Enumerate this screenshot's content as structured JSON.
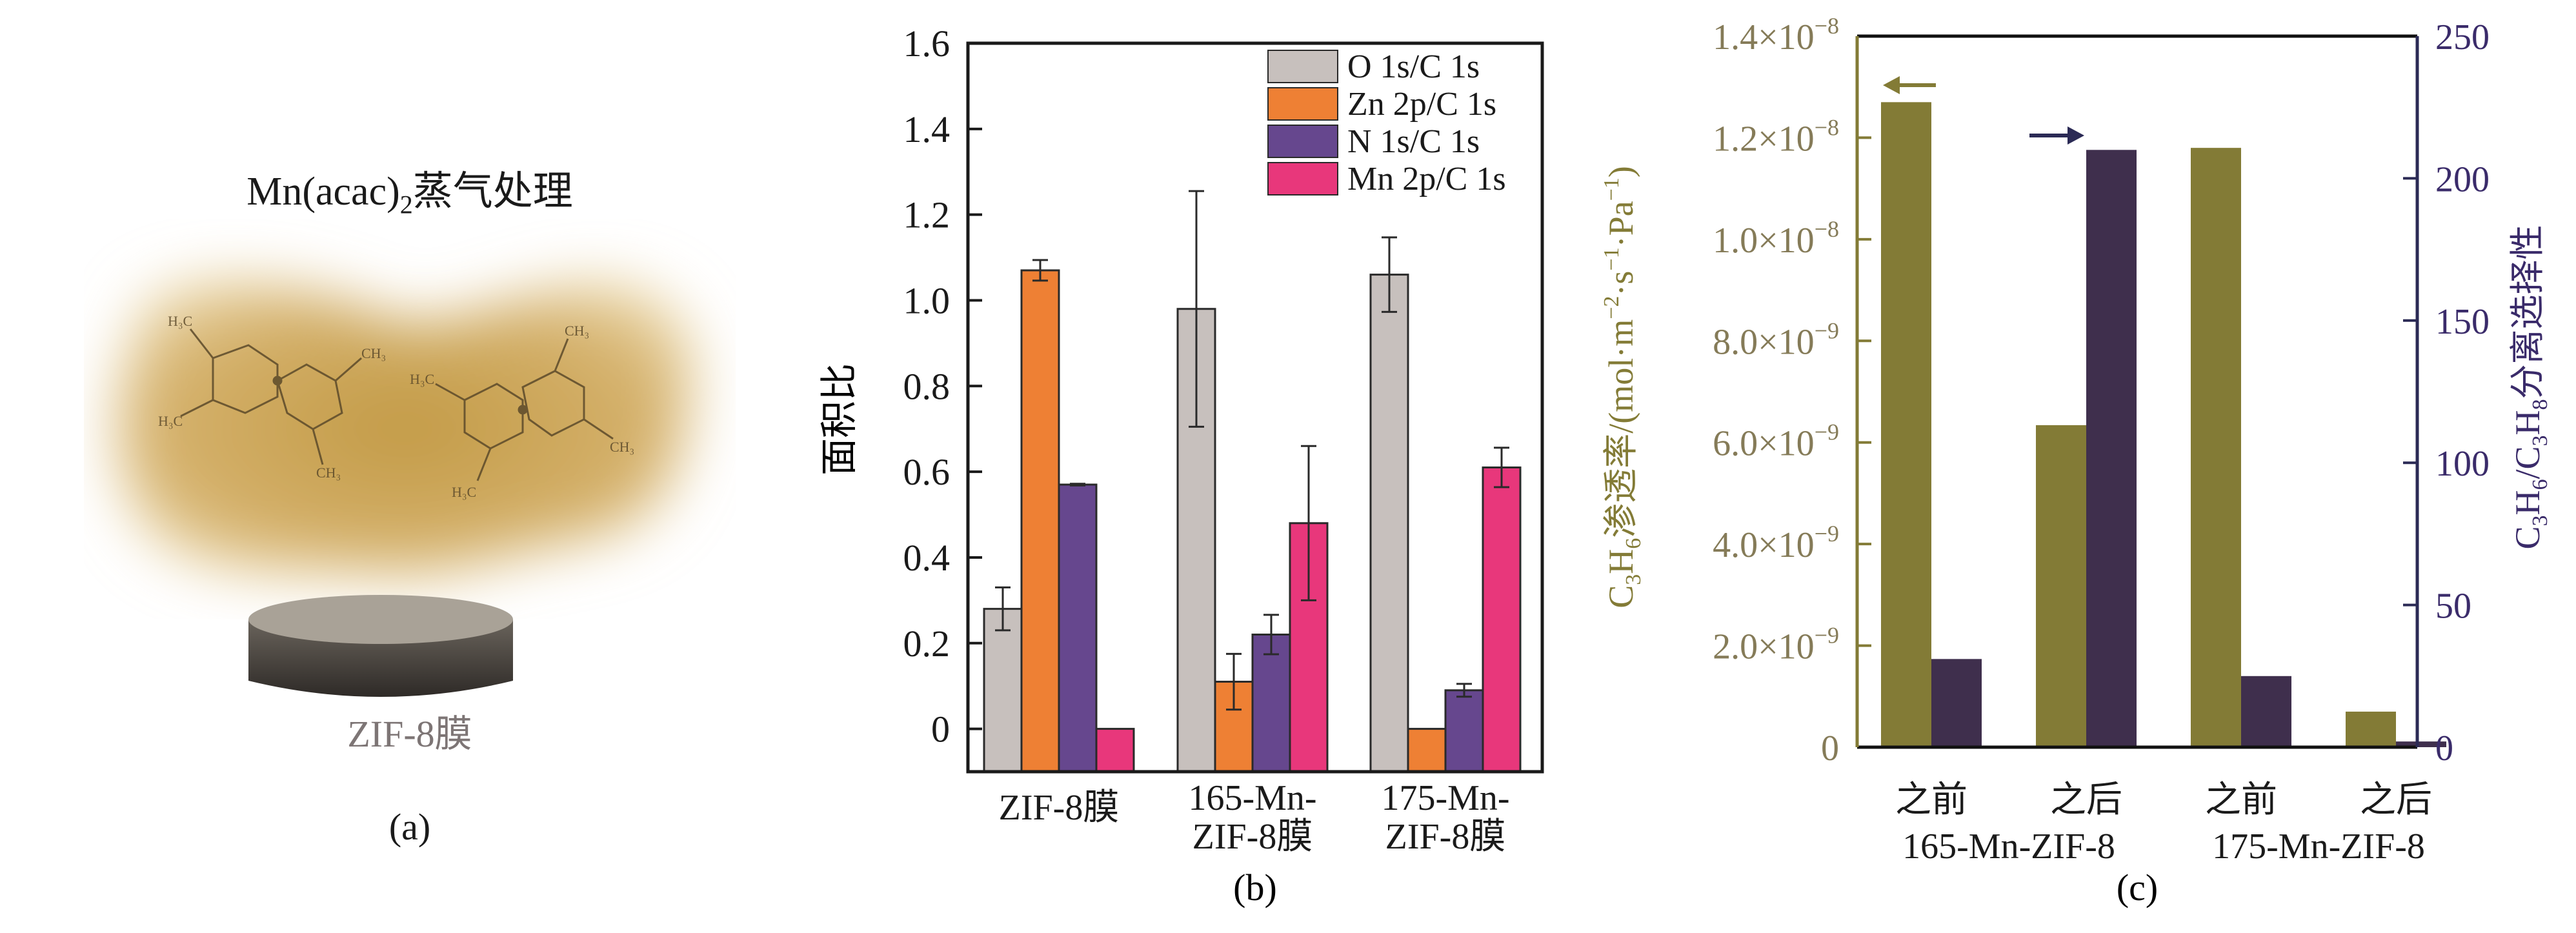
{
  "panel_a": {
    "title_main": "Mn(acac)",
    "title_sub": "2",
    "title_rest": "蒸气处理",
    "membrane_label": "ZIF-8膜",
    "panel_label": "(a)",
    "colors": {
      "vapor": "#c9a24a",
      "membrane_top": "#a59f95",
      "membrane_side": "#3c3834"
    }
  },
  "chart_data": [
    {
      "type": "bar",
      "panel_label": "(b)",
      "title": "",
      "ylabel": "面积比",
      "xlabel": "",
      "ylim": [
        -0.1,
        1.6
      ],
      "yticks": [
        0,
        0.2,
        0.4,
        0.6,
        0.8,
        1.0,
        1.2,
        1.4,
        1.6
      ],
      "ytick_labels": [
        "0",
        "0.2",
        "0.4",
        "0.6",
        "0.8",
        "1.0",
        "1.2",
        "1.4",
        "1.6"
      ],
      "grid": false,
      "legend_position": "top-right",
      "categories": [
        [
          "ZIF-8膜"
        ],
        [
          "165-Mn-",
          "ZIF-8膜"
        ],
        [
          "175-Mn-",
          "ZIF-8膜"
        ]
      ],
      "series": [
        {
          "name": "O 1s/C 1s",
          "color": "#c7c0bd",
          "values": [
            0.28,
            0.98,
            1.06
          ],
          "errors": [
            0.05,
            0.275,
            0.087
          ]
        },
        {
          "name": "Zn 2p/C 1s",
          "color": "#ee8034",
          "values": [
            1.07,
            0.11,
            0.0
          ],
          "errors": [
            0.024,
            0.065,
            0
          ]
        },
        {
          "name": "N 1s/C 1s",
          "color": "#66478e",
          "values": [
            0.57,
            0.22,
            0.09
          ],
          "errors": [
            0.002,
            0.046,
            0.015
          ]
        },
        {
          "name": "Mn 2p/C 1s",
          "color": "#e8377b",
          "values": [
            0.0,
            0.48,
            0.61
          ],
          "errors": [
            0,
            0.18,
            0.046
          ]
        }
      ]
    },
    {
      "type": "bar",
      "panel_label": "(c)",
      "title": "",
      "ylabel_left": {
        "pre": "C",
        "sub1": "3",
        "mid": "H",
        "sub2": "6",
        "rest": "渗透率/(mol·m",
        "sup1": "−2",
        "dot": "·s",
        "sup2": "−1",
        "pa": "·Pa",
        "sup3": "−1",
        "end": ")"
      },
      "ylabel_left_text": "C3H6渗透率/(mol·m−2·s−1·Pa−1)",
      "ylabel_right_text": "C3H6/C3H8分离选择性",
      "ylim_left": [
        0,
        1.4e-08
      ],
      "ylim_right": [
        0,
        250
      ],
      "yticks_left": [
        0,
        2e-09,
        4e-09,
        6e-09,
        8e-09,
        1e-08,
        1.2e-08,
        1.4e-08
      ],
      "ytick_labels_left": [
        {
          "mant": "0",
          "exp": ""
        },
        {
          "mant": "2.0×10",
          "exp": "−9"
        },
        {
          "mant": "4.0×10",
          "exp": "−9"
        },
        {
          "mant": "6.0×10",
          "exp": "−9"
        },
        {
          "mant": "8.0×10",
          "exp": "−9"
        },
        {
          "mant": "1.0×10",
          "exp": "−8"
        },
        {
          "mant": "1.2×10",
          "exp": "−8"
        },
        {
          "mant": "1.4×10",
          "exp": "−8"
        }
      ],
      "yticks_right": [
        0,
        50,
        100,
        150,
        200,
        250
      ],
      "ytick_labels_right": [
        "0",
        "50",
        "100",
        "150",
        "200",
        "250"
      ],
      "grid": false,
      "categories": [
        "之前",
        "之后",
        "之前",
        "之后"
      ],
      "groups": [
        "165-Mn-ZIF-8",
        "175-Mn-ZIF-8"
      ],
      "series": [
        {
          "name": "C3H6渗透率",
          "axis": "left",
          "color": "#837b36",
          "values": [
            1.27e-08,
            6.34e-09,
            1.18e-08,
            7e-10
          ]
        },
        {
          "name": "C3H6/C3H8分离选择性",
          "axis": "right",
          "color": "#3f2f4d",
          "values": [
            31,
            210,
            25,
            2
          ]
        }
      ],
      "axis_colors": {
        "left": "#837b36",
        "left_text": "#857b58",
        "right": "#2b2a55",
        "right_text": "#3a2b6a"
      },
      "annotations": [
        {
          "type": "arrow",
          "direction": "left",
          "meaning": "left-axis series"
        },
        {
          "type": "arrow",
          "direction": "right",
          "meaning": "right-axis series"
        }
      ]
    }
  ]
}
